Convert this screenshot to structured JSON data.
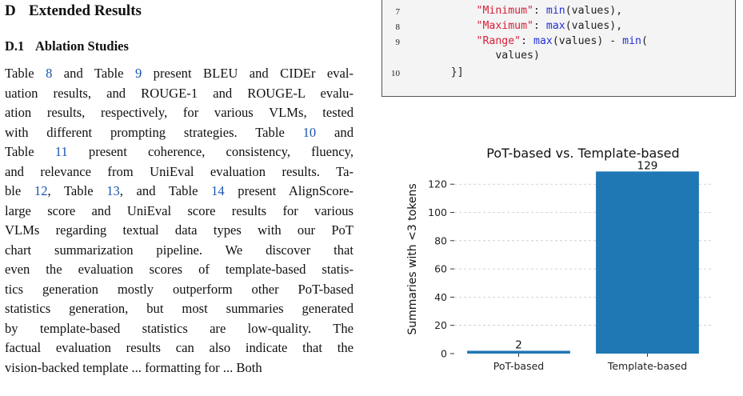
{
  "section": {
    "number": "D",
    "title": "Extended Results"
  },
  "subsection": {
    "number": "D.1",
    "title": "Ablation Studies"
  },
  "paragraph_lines": [
    [
      {
        "t": "Table "
      },
      {
        "t": "8",
        "link": true
      },
      {
        "t": " and Table "
      },
      {
        "t": "9",
        "link": true
      },
      {
        "t": " present BLEU and CIDEr eval-"
      }
    ],
    [
      {
        "t": "uation results, and ROUGE-1 and ROUGE-L evalu-"
      }
    ],
    [
      {
        "t": "ation results, respectively, for various VLMs, tested"
      }
    ],
    [
      {
        "t": "with different prompting strategies. Table "
      },
      {
        "t": "10",
        "link": true
      },
      {
        "t": " and"
      }
    ],
    [
      {
        "t": "Table "
      },
      {
        "t": "11",
        "link": true
      },
      {
        "t": " present coherence, consistency, fluency,"
      }
    ],
    [
      {
        "t": "and relevance from UniEval evaluation results. Ta-"
      }
    ],
    [
      {
        "t": "ble "
      },
      {
        "t": "12",
        "link": true
      },
      {
        "t": ", Table "
      },
      {
        "t": "13",
        "link": true
      },
      {
        "t": ", and Table "
      },
      {
        "t": "14",
        "link": true
      },
      {
        "t": " present AlignScore-"
      }
    ],
    [
      {
        "t": "large score and UniEval score results for various"
      }
    ],
    [
      {
        "t": "VLMs regarding textual data types with our PoT"
      }
    ],
    [
      {
        "t": "chart summarization pipeline. We discover that"
      }
    ],
    [
      {
        "t": "even the evaluation scores of template-based statis-"
      }
    ],
    [
      {
        "t": "tics generation mostly outperform other PoT-based"
      }
    ],
    [
      {
        "t": "statistics generation, but most summaries generated"
      }
    ],
    [
      {
        "t": "by template-based statistics are low-quality. The"
      }
    ],
    [
      {
        "t": "factual evaluation results can also indicate that the"
      }
    ],
    [
      {
        "t": "vision-backed template ... formatting for ... Both"
      }
    ]
  ],
  "code": {
    "lines": [
      {
        "n": "7",
        "tokens": [
          {
            "t": "        "
          },
          {
            "t": "\"Minimum\"",
            "c": "str"
          },
          {
            "t": ": "
          },
          {
            "t": "min",
            "c": "fn"
          },
          {
            "t": "(values),"
          }
        ]
      },
      {
        "n": "8",
        "tokens": [
          {
            "t": "        "
          },
          {
            "t": "\"Maximum\"",
            "c": "str"
          },
          {
            "t": ": "
          },
          {
            "t": "max",
            "c": "fn"
          },
          {
            "t": "(values),"
          }
        ]
      },
      {
        "n": "9",
        "tokens": [
          {
            "t": "        "
          },
          {
            "t": "\"Range\"",
            "c": "str"
          },
          {
            "t": ": "
          },
          {
            "t": "max",
            "c": "fn"
          },
          {
            "t": "(values) - "
          },
          {
            "t": "min",
            "c": "fn"
          },
          {
            "t": "("
          }
        ]
      },
      {
        "n": "",
        "tokens": [
          {
            "t": "           values)"
          }
        ]
      },
      {
        "n": "10",
        "tokens": [
          {
            "t": "    }]"
          }
        ]
      }
    ]
  },
  "colors": {
    "bar": "#1f77b4",
    "link": "#1a55b0",
    "code_string": "#d6203b",
    "code_function": "#2430d8"
  },
  "chart_data": {
    "type": "bar",
    "title": "PoT-based vs. Template-based",
    "xlabel": "",
    "ylabel": "Summaries with <3 tokens",
    "categories": [
      "PoT-based",
      "Template-based"
    ],
    "values": [
      2,
      129
    ],
    "data_labels": [
      "2",
      "129"
    ],
    "ylim": [
      0,
      136
    ],
    "yticks": [
      0,
      20,
      40,
      60,
      80,
      100,
      120
    ],
    "grid": "horizontal dashed"
  }
}
